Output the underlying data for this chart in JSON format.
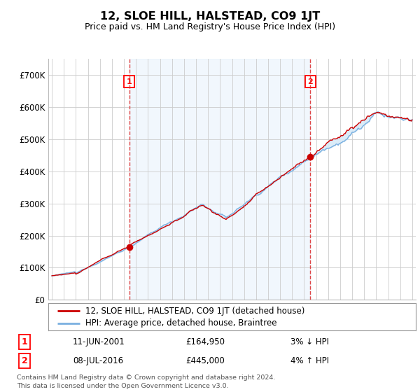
{
  "title": "12, SLOE HILL, HALSTEAD, CO9 1JT",
  "subtitle": "Price paid vs. HM Land Registry's House Price Index (HPI)",
  "hpi_color": "#7ab0e0",
  "price_color": "#cc0000",
  "fill_color": "#d8eaf8",
  "dashed_color": "#dd3333",
  "background_color": "#ffffff",
  "grid_color": "#cccccc",
  "ylim": [
    0,
    750000
  ],
  "yticks": [
    0,
    100000,
    200000,
    300000,
    400000,
    500000,
    600000,
    700000
  ],
  "ytick_labels": [
    "£0",
    "£100K",
    "£200K",
    "£300K",
    "£400K",
    "£500K",
    "£600K",
    "£700K"
  ],
  "xstart_year": 1995,
  "xend_year": 2025,
  "transaction1_year": 2001.44,
  "transaction1_price": 164950,
  "transaction2_year": 2016.52,
  "transaction2_price": 445000,
  "legend_label1": "12, SLOE HILL, HALSTEAD, CO9 1JT (detached house)",
  "legend_label2": "HPI: Average price, detached house, Braintree",
  "t1_date": "11-JUN-2001",
  "t1_price_str": "£164,950",
  "t1_hpi": "3% ↓ HPI",
  "t2_date": "08-JUL-2016",
  "t2_price_str": "£445,000",
  "t2_hpi": "4% ↑ HPI",
  "footer1": "Contains HM Land Registry data © Crown copyright and database right 2024.",
  "footer2": "This data is licensed under the Open Government Licence v3.0."
}
